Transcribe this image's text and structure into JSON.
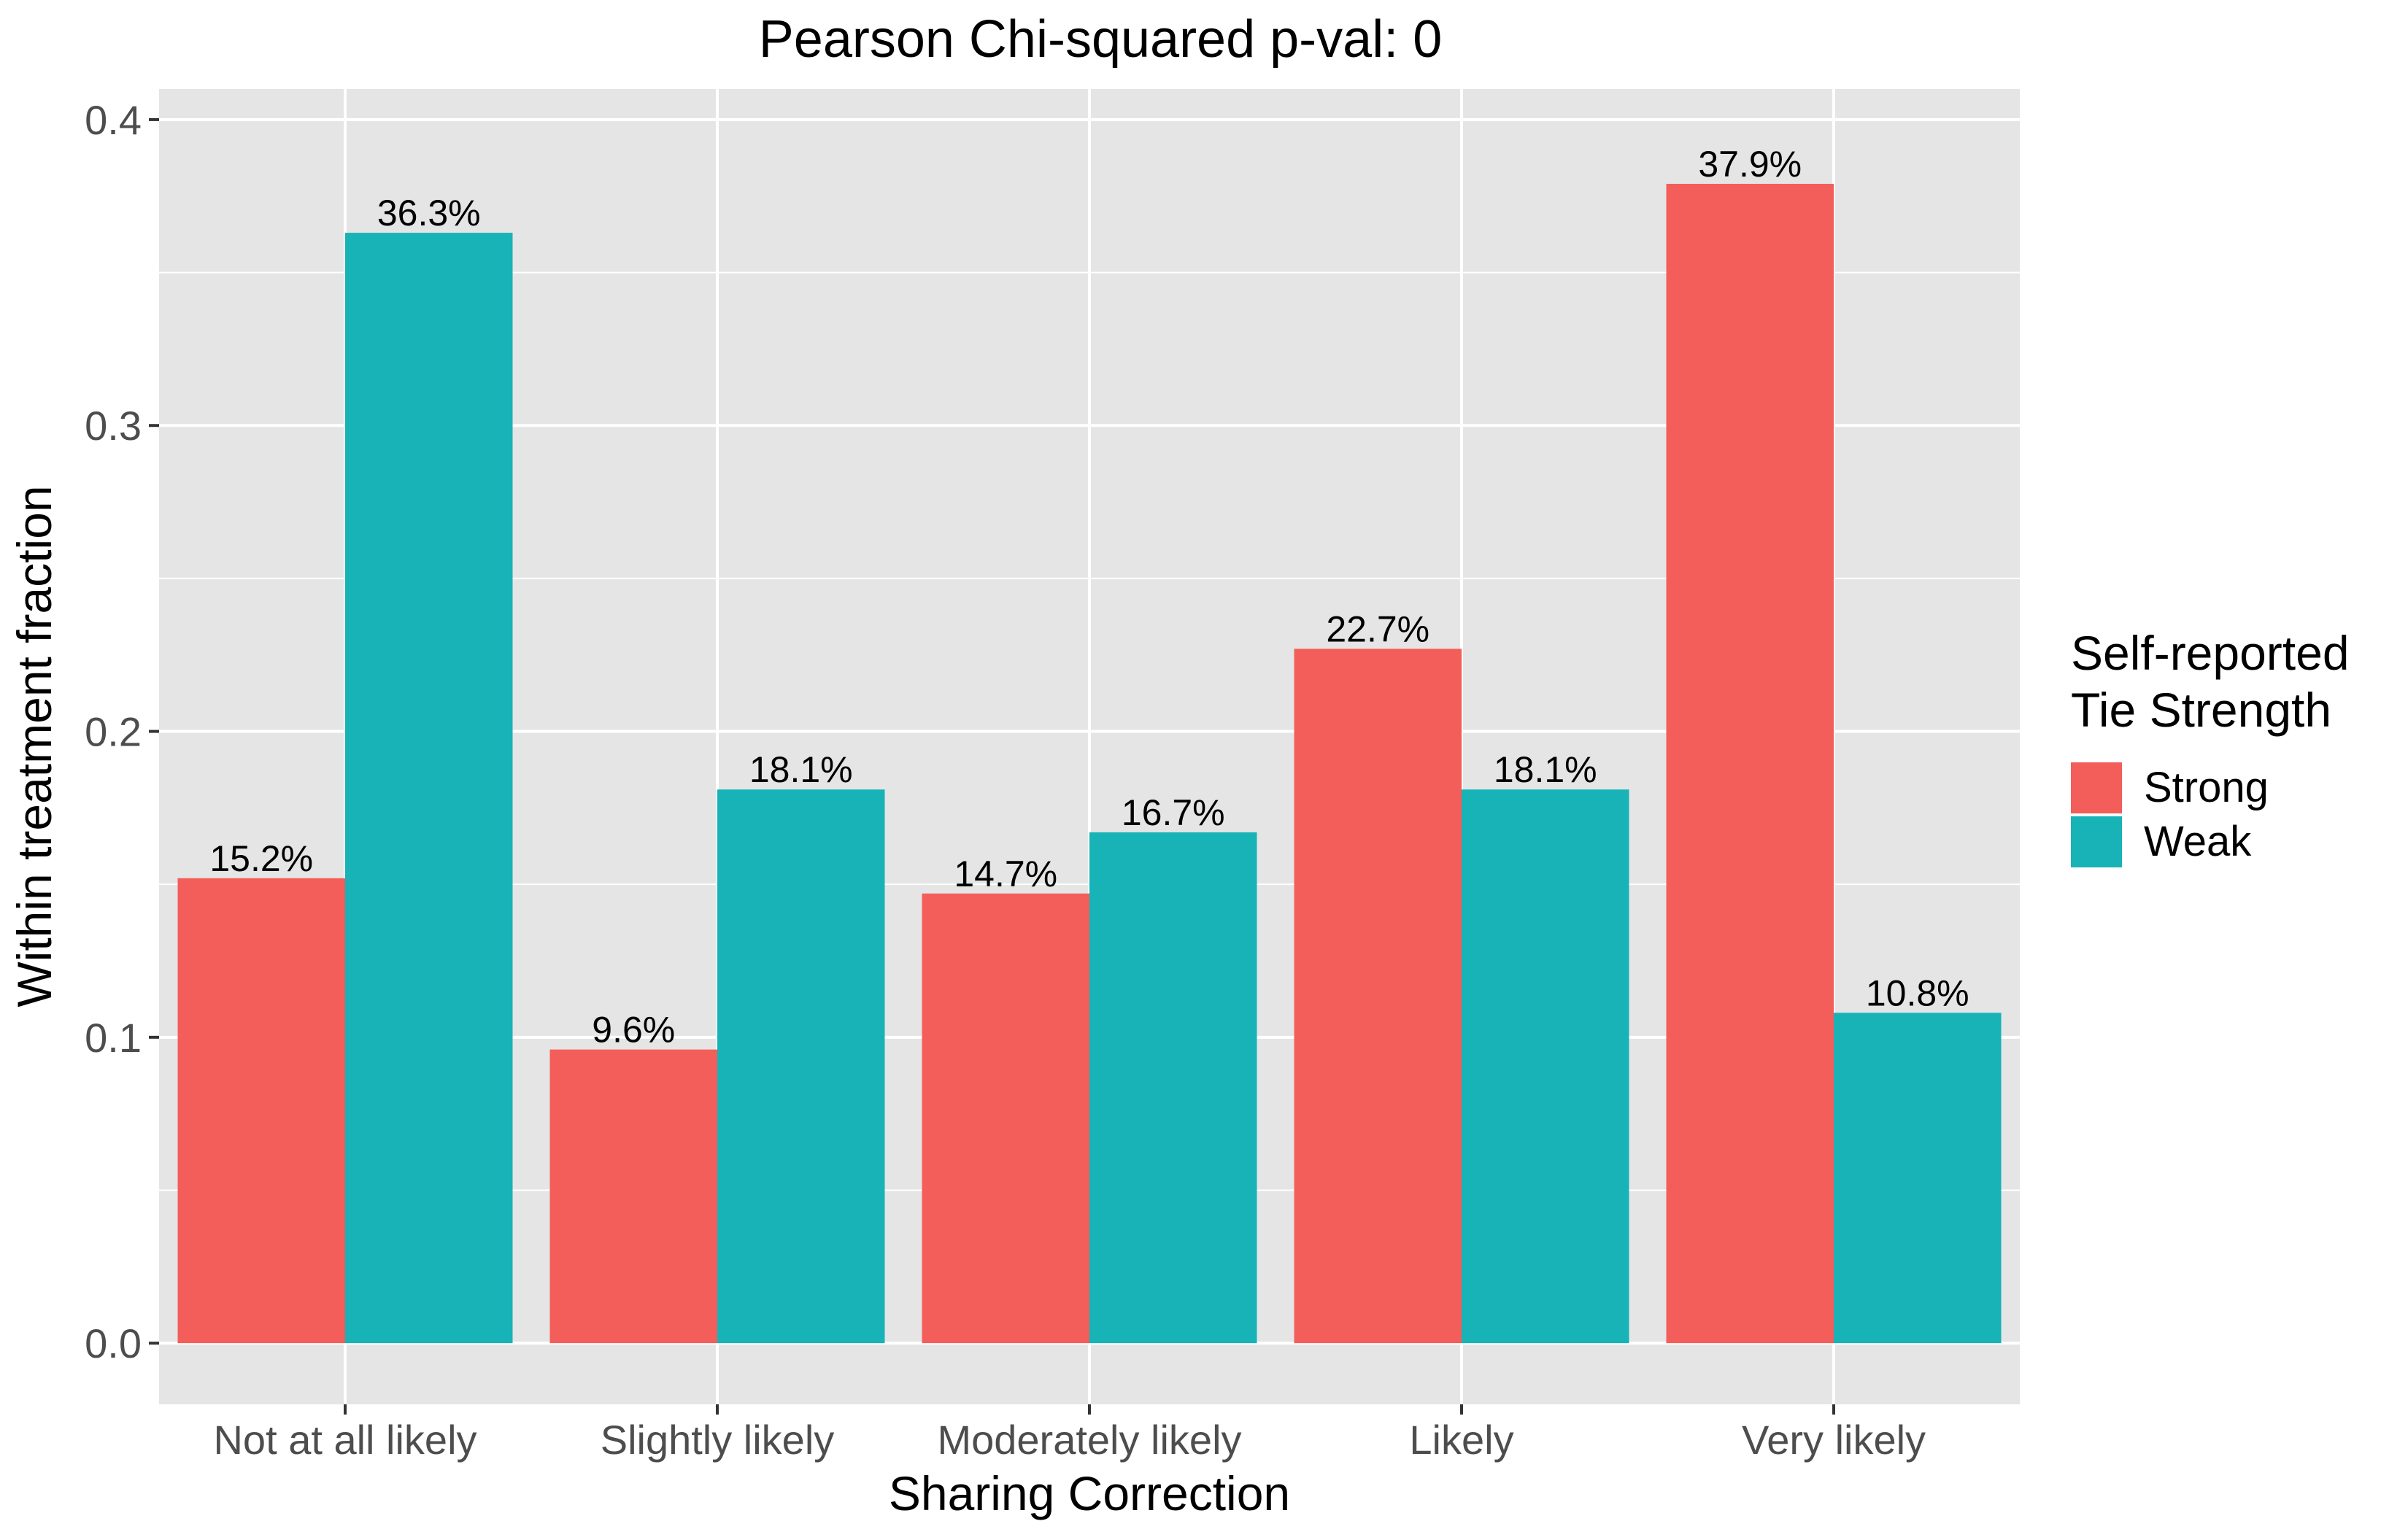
{
  "chart_data": {
    "type": "bar",
    "title": "Pearson Chi-squared p-val: 0",
    "xlabel": "Sharing Correction",
    "ylabel": "Within treatment fraction",
    "categories": [
      "Not at all likely",
      "Slightly likely",
      "Moderately likely",
      "Likely",
      "Very likely"
    ],
    "series": [
      {
        "name": "Strong",
        "color": "#F35E5A",
        "values": [
          0.152,
          0.096,
          0.147,
          0.227,
          0.379
        ],
        "labels": [
          "15.2%",
          "9.6%",
          "14.7%",
          "22.7%",
          "37.9%"
        ]
      },
      {
        "name": "Weak",
        "color": "#17B3B7",
        "values": [
          0.363,
          0.181,
          0.167,
          0.181,
          0.108
        ],
        "labels": [
          "36.3%",
          "18.1%",
          "16.7%",
          "18.1%",
          "10.8%"
        ]
      }
    ],
    "ylim": [
      -0.02,
      0.41
    ],
    "yticks": [
      0.0,
      0.1,
      0.2,
      0.3,
      0.4
    ],
    "ytick_labels": [
      "0.0",
      "0.1",
      "0.2",
      "0.3",
      "0.4"
    ],
    "legend": {
      "title_lines": [
        "Self-reported",
        "Tie Strength"
      ],
      "position": "right"
    },
    "grid": true,
    "panel_background": "#E5E5E5"
  }
}
